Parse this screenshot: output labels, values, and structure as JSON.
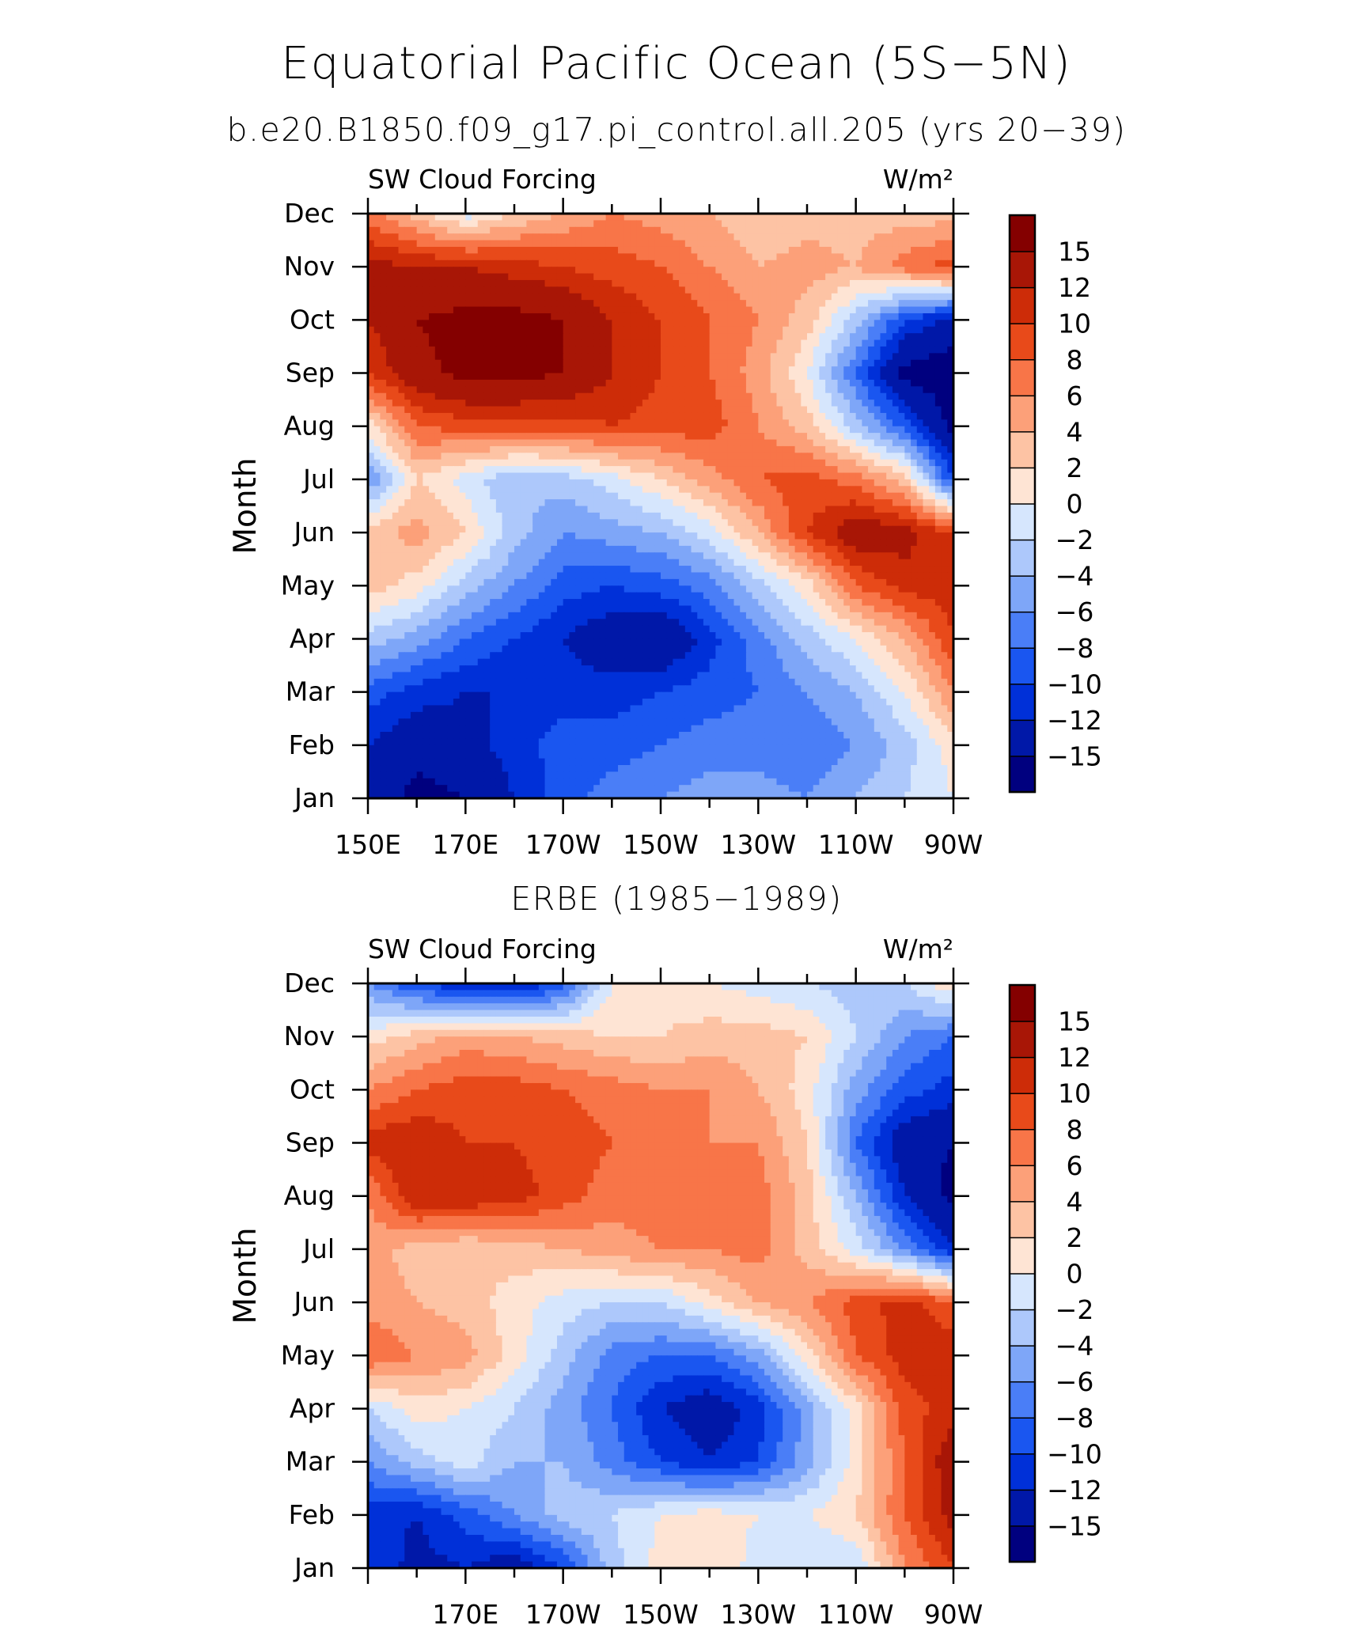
{
  "page": {
    "title": "Equatorial Pacific Ocean (5S−5N)"
  },
  "chart_data": [
    {
      "type": "heatmap",
      "panel_title": "b.e20.B1850.f09_g17.pi_control.all.205 (yrs 20−39)",
      "left_label": "SW Cloud Forcing",
      "units": "W/m²",
      "ylabel": "Month",
      "xlabels": [
        "150E",
        "170E",
        "170W",
        "150W",
        "130W",
        "110W",
        "90W"
      ],
      "ylabels": [
        "Jan",
        "Feb",
        "Mar",
        "Apr",
        "May",
        "Jun",
        "Jul",
        "Aug",
        "Sep",
        "Oct",
        "Nov",
        "Dec"
      ],
      "xlim": [
        150,
        270
      ],
      "x_ticks": [
        150,
        170,
        190,
        210,
        230,
        250,
        270
      ],
      "colorbar_labels": [
        "15",
        "12",
        "10",
        "8",
        "6",
        "4",
        "2",
        "0",
        "−2",
        "−4",
        "−6",
        "−8",
        "−10",
        "−12",
        "−15"
      ],
      "longitudes": [
        150,
        160,
        170,
        180,
        190,
        200,
        210,
        220,
        230,
        240,
        250,
        260,
        270
      ],
      "values": [
        [
          -13,
          -16,
          -15,
          -12,
          -9,
          -7,
          -6,
          -5,
          -5,
          -6,
          -4,
          -2,
          0
        ],
        [
          -12,
          -14,
          -13,
          -11,
          -9,
          -9,
          -8,
          -7,
          -7,
          -8,
          -6,
          -3,
          1
        ],
        [
          -9,
          -11,
          -12,
          -12,
          -11,
          -11,
          -10,
          -9,
          -8,
          -6,
          -4,
          0,
          6
        ],
        [
          -3,
          -5,
          -8,
          -10,
          -12,
          -14,
          -15,
          -11,
          -7,
          -3,
          0,
          4,
          10
        ],
        [
          3,
          1,
          -3,
          -6,
          -9,
          -10,
          -9,
          -7,
          -3,
          1,
          8,
          11,
          11
        ],
        [
          3,
          5,
          2,
          -3,
          -6,
          -5,
          -4,
          -1,
          4,
          10,
          14,
          13,
          10
        ],
        [
          -6,
          2,
          -1,
          -4,
          -3,
          -1,
          2,
          5,
          8,
          9,
          7,
          3,
          -10
        ],
        [
          1,
          8,
          9,
          9,
          9,
          10,
          9,
          9,
          6,
          3,
          -3,
          -9,
          -16
        ],
        [
          10,
          14,
          16,
          16,
          15,
          12,
          10,
          8,
          5,
          0,
          -8,
          -16,
          -17
        ],
        [
          12,
          15,
          16,
          16,
          15,
          12,
          10,
          8,
          6,
          3,
          -3,
          -10,
          -13
        ],
        [
          13,
          12,
          12,
          11,
          10,
          9,
          8,
          6,
          4,
          5,
          4,
          7,
          9
        ],
        [
          7,
          3,
          -1,
          2,
          4,
          6,
          5,
          4,
          2,
          3,
          3,
          3,
          3
        ]
      ]
    },
    {
      "type": "heatmap",
      "panel_title": "ERBE (1985−1989)",
      "left_label": "SW Cloud Forcing",
      "units": "W/m²",
      "ylabel": "Month",
      "xlabels": [
        "170E",
        "170W",
        "150W",
        "130W",
        "110W",
        "90W"
      ],
      "ylabels": [
        "Jan",
        "Feb",
        "Mar",
        "Apr",
        "May",
        "Jun",
        "Jul",
        "Aug",
        "Sep",
        "Oct",
        "Nov",
        "Dec"
      ],
      "xlim": [
        150,
        270
      ],
      "x_ticks": [
        170,
        190,
        210,
        230,
        250,
        270
      ],
      "colorbar_labels": [
        "15",
        "12",
        "10",
        "8",
        "6",
        "4",
        "2",
        "0",
        "−2",
        "−4",
        "−6",
        "−8",
        "−10",
        "−12",
        "−15"
      ],
      "longitudes": [
        150,
        160,
        170,
        180,
        190,
        200,
        210,
        220,
        230,
        240,
        250,
        260,
        270
      ],
      "values": [
        [
          -10,
          -13,
          -12,
          -14,
          -10,
          -3,
          1,
          2,
          -1,
          -2,
          -2,
          6,
          10
        ],
        [
          -11,
          -12,
          -9,
          -6,
          -3,
          -2,
          0,
          1,
          0,
          0,
          2,
          8,
          13
        ],
        [
          -6,
          -3,
          -1,
          -4,
          -4,
          -7,
          -10,
          -12,
          -10,
          -5,
          1,
          8,
          14
        ],
        [
          -2,
          1,
          0,
          -2,
          -5,
          -8,
          -12,
          -14,
          -11,
          -5,
          1,
          9,
          11
        ],
        [
          8,
          6,
          5,
          1,
          -3,
          -7,
          -8,
          -8,
          -5,
          1,
          8,
          11,
          12
        ],
        [
          5,
          4,
          3,
          1,
          -1,
          -2,
          -2,
          1,
          4,
          6,
          9,
          11,
          8
        ],
        [
          5,
          3,
          2,
          3,
          4,
          5,
          6,
          6,
          7,
          3,
          -1,
          -6,
          -12
        ],
        [
          6,
          12,
          12,
          11,
          9,
          7,
          7,
          8,
          7,
          3,
          -4,
          -12,
          -16
        ],
        [
          11,
          12,
          10,
          10,
          9,
          8,
          7,
          6,
          6,
          2,
          -8,
          -14,
          -15
        ],
        [
          6,
          8,
          9,
          9,
          8,
          7,
          6,
          6,
          4,
          1,
          -5,
          -9,
          -11
        ],
        [
          1,
          3,
          5,
          4,
          3,
          2,
          2,
          3,
          3,
          2,
          -2,
          -6,
          -8
        ],
        [
          -6,
          -10,
          -12,
          -13,
          -9,
          0,
          1,
          0,
          -1,
          -2,
          -3,
          -2,
          2
        ]
      ]
    }
  ],
  "colors": {
    "levels": [
      "#00007f",
      "#0018a8",
      "#0030d8",
      "#1a56f0",
      "#4a7ef7",
      "#7ea6f8",
      "#adc8fb",
      "#d6e6fd",
      "#fee4d4",
      "#fdc3a4",
      "#fca079",
      "#f87548",
      "#e84a1a",
      "#cd2c08",
      "#a81606",
      "#840000"
    ]
  }
}
